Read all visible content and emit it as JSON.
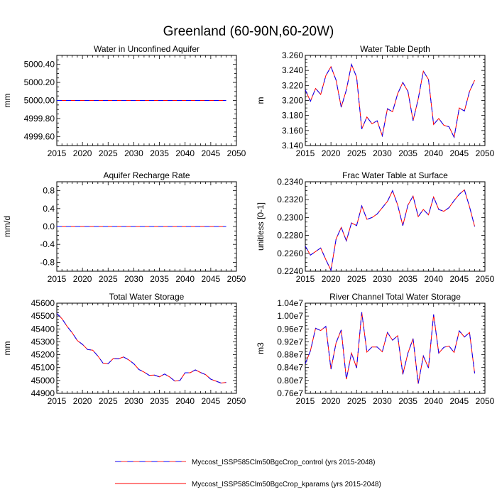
{
  "figure": {
    "title": "Greenland (60-90N,60-20W)",
    "legend": [
      {
        "label": "Myccost_ISSP585Clm50BgcCrop_control (yrs 2015-2048)",
        "color": "#0000ff",
        "dash": true
      },
      {
        "label": "Myccost_ISSP585Clm50BgcCrop_kparams (yrs 2015-2048)",
        "color": "#ff0000",
        "dash": false
      }
    ]
  },
  "chart_data": [
    {
      "type": "line",
      "title": "Water in Unconfined Aquifer",
      "ylabel": "mm",
      "xlabel": "",
      "xlim": [
        2015,
        2050
      ],
      "ylim": [
        4999.5,
        5000.5
      ],
      "xticks": [
        2015,
        2020,
        2025,
        2030,
        2035,
        2040,
        2045,
        2050
      ],
      "yticks": [
        4999.6,
        4999.8,
        5000.0,
        5000.2,
        5000.4
      ],
      "ytick_labels": [
        "4999.60",
        "4999.80",
        "5000.00",
        "5000.20",
        "5000.40"
      ],
      "x": [
        2015,
        2016,
        2017,
        2018,
        2019,
        2020,
        2021,
        2022,
        2023,
        2024,
        2025,
        2026,
        2027,
        2028,
        2029,
        2030,
        2031,
        2032,
        2033,
        2034,
        2035,
        2036,
        2037,
        2038,
        2039,
        2040,
        2041,
        2042,
        2043,
        2044,
        2045,
        2046,
        2047,
        2048
      ],
      "series": [
        {
          "name": "control",
          "values": [
            5000,
            5000,
            5000,
            5000,
            5000,
            5000,
            5000,
            5000,
            5000,
            5000,
            5000,
            5000,
            5000,
            5000,
            5000,
            5000,
            5000,
            5000,
            5000,
            5000,
            5000,
            5000,
            5000,
            5000,
            5000,
            5000,
            5000,
            5000,
            5000,
            5000,
            5000,
            5000,
            5000,
            5000
          ]
        },
        {
          "name": "kparams",
          "values": [
            5000,
            5000,
            5000,
            5000,
            5000,
            5000,
            5000,
            5000,
            5000,
            5000,
            5000,
            5000,
            5000,
            5000,
            5000,
            5000,
            5000,
            5000,
            5000,
            5000,
            5000,
            5000,
            5000,
            5000,
            5000,
            5000,
            5000,
            5000,
            5000,
            5000,
            5000,
            5000,
            5000,
            5000
          ]
        }
      ]
    },
    {
      "type": "line",
      "title": "Water Table Depth",
      "ylabel": "m",
      "xlabel": "",
      "xlim": [
        2015,
        2050
      ],
      "ylim": [
        3.14,
        3.26
      ],
      "xticks": [
        2015,
        2020,
        2025,
        2030,
        2035,
        2040,
        2045,
        2050
      ],
      "yticks": [
        3.14,
        3.16,
        3.18,
        3.2,
        3.22,
        3.24,
        3.26
      ],
      "ytick_labels": [
        "3.140",
        "3.160",
        "3.180",
        "3.200",
        "3.220",
        "3.240",
        "3.260"
      ],
      "x": [
        2015,
        2016,
        2017,
        2018,
        2019,
        2020,
        2021,
        2022,
        2023,
        2024,
        2025,
        2026,
        2027,
        2028,
        2029,
        2030,
        2031,
        2032,
        2033,
        2034,
        2035,
        2036,
        2037,
        2038,
        2039,
        2040,
        2041,
        2042,
        2043,
        2044,
        2045,
        2046,
        2047,
        2048
      ],
      "series": [
        {
          "name": "control",
          "values": [
            3.214,
            3.199,
            3.216,
            3.208,
            3.233,
            3.245,
            3.227,
            3.191,
            3.214,
            3.248,
            3.231,
            3.162,
            3.178,
            3.169,
            3.173,
            3.153,
            3.189,
            3.185,
            3.209,
            3.224,
            3.212,
            3.173,
            3.202,
            3.239,
            3.228,
            3.168,
            3.176,
            3.167,
            3.165,
            3.151,
            3.19,
            3.186,
            3.212,
            3.227
          ]
        },
        {
          "name": "kparams",
          "values": [
            3.214,
            3.199,
            3.216,
            3.208,
            3.233,
            3.245,
            3.227,
            3.191,
            3.214,
            3.248,
            3.231,
            3.162,
            3.178,
            3.169,
            3.173,
            3.153,
            3.189,
            3.185,
            3.209,
            3.224,
            3.212,
            3.173,
            3.202,
            3.239,
            3.228,
            3.168,
            3.176,
            3.167,
            3.165,
            3.151,
            3.19,
            3.186,
            3.212,
            3.227
          ]
        }
      ]
    },
    {
      "type": "line",
      "title": "Aquifer Recharge Rate",
      "ylabel": "mm/d",
      "xlabel": "",
      "xlim": [
        2015,
        2050
      ],
      "ylim": [
        -1.0,
        1.0
      ],
      "xticks": [
        2015,
        2020,
        2025,
        2030,
        2035,
        2040,
        2045,
        2050
      ],
      "yticks": [
        -0.8,
        -0.4,
        0.0,
        0.4,
        0.8
      ],
      "ytick_labels": [
        "-0.8",
        "-0.4",
        "0.0",
        "0.4",
        "0.8"
      ],
      "x": [
        2015,
        2016,
        2017,
        2018,
        2019,
        2020,
        2021,
        2022,
        2023,
        2024,
        2025,
        2026,
        2027,
        2028,
        2029,
        2030,
        2031,
        2032,
        2033,
        2034,
        2035,
        2036,
        2037,
        2038,
        2039,
        2040,
        2041,
        2042,
        2043,
        2044,
        2045,
        2046,
        2047,
        2048
      ],
      "series": [
        {
          "name": "control",
          "values": [
            0,
            0,
            0,
            0,
            0,
            0,
            0,
            0,
            0,
            0,
            0,
            0,
            0,
            0,
            0,
            0,
            0,
            0,
            0,
            0,
            0,
            0,
            0,
            0,
            0,
            0,
            0,
            0,
            0,
            0,
            0,
            0,
            0,
            0
          ]
        },
        {
          "name": "kparams",
          "values": [
            0,
            0,
            0,
            0,
            0,
            0,
            0,
            0,
            0,
            0,
            0,
            0,
            0,
            0,
            0,
            0,
            0,
            0,
            0,
            0,
            0,
            0,
            0,
            0,
            0,
            0,
            0,
            0,
            0,
            0,
            0,
            0,
            0,
            0
          ]
        }
      ]
    },
    {
      "type": "line",
      "title": "Frac Water Table at Surface",
      "ylabel": "unitless [0-1]",
      "xlabel": "",
      "xlim": [
        2015,
        2050
      ],
      "ylim": [
        0.224,
        0.234
      ],
      "xticks": [
        2015,
        2020,
        2025,
        2030,
        2035,
        2040,
        2045,
        2050
      ],
      "yticks": [
        0.224,
        0.226,
        0.228,
        0.23,
        0.232,
        0.234
      ],
      "ytick_labels": [
        "0.2240",
        "0.2260",
        "0.2280",
        "0.2300",
        "0.2320",
        "0.2340"
      ],
      "x": [
        2015,
        2016,
        2017,
        2018,
        2019,
        2020,
        2021,
        2022,
        2023,
        2024,
        2025,
        2026,
        2027,
        2028,
        2029,
        2030,
        2031,
        2032,
        2033,
        2034,
        2035,
        2036,
        2037,
        2038,
        2039,
        2040,
        2041,
        2042,
        2043,
        2044,
        2045,
        2046,
        2047,
        2048
      ],
      "series": [
        {
          "name": "control",
          "values": [
            0.2268,
            0.2258,
            0.2262,
            0.2266,
            0.2253,
            0.2241,
            0.2276,
            0.2289,
            0.2274,
            0.2294,
            0.2291,
            0.2313,
            0.2298,
            0.23,
            0.2304,
            0.2311,
            0.2318,
            0.233,
            0.2314,
            0.2291,
            0.2314,
            0.2324,
            0.2301,
            0.2309,
            0.2303,
            0.2323,
            0.2309,
            0.2307,
            0.2311,
            0.2319,
            0.2326,
            0.2331,
            0.2312,
            0.229
          ]
        },
        {
          "name": "kparams",
          "values": [
            0.2268,
            0.2258,
            0.2262,
            0.2266,
            0.2253,
            0.2241,
            0.2276,
            0.2289,
            0.2274,
            0.2294,
            0.2291,
            0.2313,
            0.2298,
            0.23,
            0.2304,
            0.2311,
            0.2318,
            0.233,
            0.2314,
            0.2291,
            0.2314,
            0.2324,
            0.2301,
            0.2309,
            0.2303,
            0.2323,
            0.2309,
            0.2307,
            0.2311,
            0.2319,
            0.2326,
            0.2331,
            0.2312,
            0.229
          ]
        }
      ]
    },
    {
      "type": "line",
      "title": "Total Water Storage",
      "ylabel": "mm",
      "xlabel": "",
      "xlim": [
        2015,
        2050
      ],
      "ylim": [
        44900,
        45600
      ],
      "xticks": [
        2015,
        2020,
        2025,
        2030,
        2035,
        2040,
        2045,
        2050
      ],
      "yticks": [
        44900,
        45000,
        45100,
        45200,
        45300,
        45400,
        45500,
        45600
      ],
      "ytick_labels": [
        "44900",
        "45000",
        "45100",
        "45200",
        "45300",
        "45400",
        "45500",
        "45600"
      ],
      "x": [
        2015,
        2016,
        2017,
        2018,
        2019,
        2020,
        2021,
        2022,
        2023,
        2024,
        2025,
        2026,
        2027,
        2028,
        2029,
        2030,
        2031,
        2032,
        2033,
        2034,
        2035,
        2036,
        2037,
        2038,
        2039,
        2040,
        2041,
        2042,
        2043,
        2044,
        2045,
        2046,
        2047,
        2048
      ],
      "series": [
        {
          "name": "control",
          "values": [
            45520,
            45480,
            45420,
            45370,
            45310,
            45280,
            45240,
            45235,
            45190,
            45135,
            45130,
            45170,
            45168,
            45182,
            45160,
            45130,
            45085,
            45065,
            45040,
            45042,
            45028,
            45050,
            45027,
            44995,
            45000,
            45060,
            45060,
            45082,
            45062,
            45045,
            45010,
            44995,
            44980,
            44985
          ]
        },
        {
          "name": "kparams",
          "values": [
            45520,
            45480,
            45420,
            45370,
            45310,
            45280,
            45240,
            45235,
            45190,
            45135,
            45130,
            45170,
            45168,
            45182,
            45160,
            45130,
            45085,
            45065,
            45040,
            45042,
            45028,
            45050,
            45027,
            44995,
            45000,
            45060,
            45060,
            45082,
            45062,
            45045,
            45010,
            44995,
            44980,
            44985
          ]
        }
      ]
    },
    {
      "type": "line",
      "title": "River Channel Total Water Storage",
      "ylabel": "m3",
      "xlabel": "",
      "xlim": [
        2015,
        2050
      ],
      "ylim": [
        7600000,
        10400000
      ],
      "xticks": [
        2015,
        2020,
        2025,
        2030,
        2035,
        2040,
        2045,
        2050
      ],
      "yticks": [
        7600000,
        8000000,
        8400000,
        8800000,
        9200000,
        9600000,
        10000000,
        10400000
      ],
      "ytick_labels": [
        "0.76e7",
        "0.80e7",
        "0.84e7",
        "0.88e7",
        "0.92e7",
        "0.96e7",
        "1.00e7",
        "1.04e7"
      ],
      "x": [
        2015,
        2016,
        2017,
        2018,
        2019,
        2020,
        2021,
        2022,
        2023,
        2024,
        2025,
        2026,
        2027,
        2028,
        2029,
        2030,
        2031,
        2032,
        2033,
        2034,
        2035,
        2036,
        2037,
        2038,
        2039,
        2040,
        2041,
        2042,
        2043,
        2044,
        2045,
        2046,
        2047,
        2048
      ],
      "series": [
        {
          "name": "control",
          "values": [
            8520000,
            8920000,
            9620000,
            9550000,
            9680000,
            8350000,
            9170000,
            9570000,
            8040000,
            8850000,
            8390000,
            10120000,
            8880000,
            9040000,
            9040000,
            8890000,
            9490000,
            9250000,
            9390000,
            8190000,
            8850000,
            9300000,
            7900000,
            8760000,
            8390000,
            10050000,
            8850000,
            9030000,
            9070000,
            8870000,
            9540000,
            9350000,
            9490000,
            8220000
          ]
        },
        {
          "name": "kparams",
          "values": [
            8520000,
            8920000,
            9620000,
            9550000,
            9680000,
            8350000,
            9170000,
            9570000,
            8040000,
            8850000,
            8390000,
            10120000,
            8880000,
            9040000,
            9040000,
            8890000,
            9490000,
            9250000,
            9390000,
            8190000,
            8850000,
            9300000,
            7900000,
            8760000,
            8390000,
            10050000,
            8850000,
            9030000,
            9070000,
            8870000,
            9540000,
            9350000,
            9490000,
            8220000
          ]
        }
      ]
    }
  ]
}
